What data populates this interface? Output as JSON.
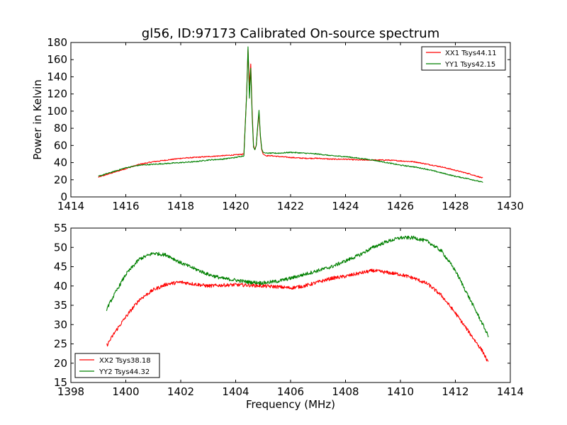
{
  "figure": {
    "title": "gl56, ID:97173 Calibrated On-source spectrum",
    "xlabel": "Frequency (MHz)"
  },
  "chart_data": [
    {
      "type": "line",
      "ylabel": "Power in Kelvin",
      "xlabel": "",
      "xlim": [
        1414,
        1430
      ],
      "ylim": [
        0,
        180
      ],
      "xticks": [
        1414,
        1416,
        1418,
        1420,
        1422,
        1424,
        1426,
        1428,
        1430
      ],
      "yticks": [
        0,
        20,
        40,
        60,
        80,
        100,
        120,
        140,
        160,
        180
      ],
      "grid": false,
      "legend_position": "top-right",
      "series": [
        {
          "name": "XX1 Tsys44.11",
          "color": "#ff0000",
          "x": [
            1415.0,
            1415.5,
            1416.0,
            1416.5,
            1417.0,
            1417.5,
            1418.0,
            1418.5,
            1419.0,
            1419.5,
            1420.0,
            1420.3,
            1420.4,
            1420.45,
            1420.5,
            1420.55,
            1420.6,
            1420.65,
            1420.7,
            1420.75,
            1420.8,
            1420.85,
            1420.9,
            1420.95,
            1421.0,
            1421.1,
            1421.3,
            1421.6,
            1422.0,
            1422.5,
            1423.0,
            1423.5,
            1424.0,
            1424.5,
            1425.0,
            1425.5,
            1426.0,
            1426.5,
            1427.0,
            1427.5,
            1428.0,
            1428.5,
            1429.0
          ],
          "y": [
            23,
            28,
            33,
            38,
            41,
            43,
            45,
            46,
            47,
            48,
            49,
            50,
            120,
            172,
            130,
            155,
            100,
            60,
            55,
            60,
            80,
            98,
            70,
            55,
            50,
            48,
            48,
            47,
            46,
            45,
            45,
            44,
            44,
            43,
            43,
            43,
            42,
            41,
            38,
            35,
            31,
            27,
            22
          ]
        },
        {
          "name": "YY1 Tsys42.15",
          "color": "#008000",
          "x": [
            1415.0,
            1415.5,
            1416.0,
            1416.5,
            1417.0,
            1417.5,
            1418.0,
            1418.5,
            1419.0,
            1419.5,
            1420.0,
            1420.3,
            1420.4,
            1420.45,
            1420.5,
            1420.55,
            1420.6,
            1420.65,
            1420.7,
            1420.75,
            1420.8,
            1420.85,
            1420.9,
            1420.95,
            1421.0,
            1421.1,
            1421.3,
            1421.6,
            1422.0,
            1422.5,
            1423.0,
            1423.5,
            1424.0,
            1424.5,
            1425.0,
            1425.5,
            1426.0,
            1426.5,
            1427.0,
            1427.5,
            1428.0,
            1428.5,
            1429.0
          ],
          "y": [
            24,
            29,
            34,
            37,
            38,
            39,
            40,
            41,
            43,
            44,
            46,
            48,
            120,
            175,
            115,
            150,
            95,
            58,
            55,
            60,
            82,
            101,
            72,
            56,
            52,
            51,
            51,
            51,
            52,
            51,
            50,
            48,
            47,
            45,
            43,
            40,
            37,
            35,
            32,
            28,
            24,
            21,
            17
          ]
        }
      ]
    },
    {
      "type": "line",
      "ylabel": "",
      "xlabel": "Frequency (MHz)",
      "xlim": [
        1398,
        1414
      ],
      "ylim": [
        15,
        55
      ],
      "xticks": [
        1398,
        1400,
        1402,
        1404,
        1406,
        1408,
        1410,
        1412,
        1414
      ],
      "yticks": [
        15,
        20,
        25,
        30,
        35,
        40,
        45,
        50,
        55
      ],
      "grid": false,
      "legend_position": "bottom-left",
      "series": [
        {
          "name": "XX2 Tsys38.18",
          "color": "#ff0000",
          "x": [
            1399.3,
            1399.6,
            1400.0,
            1400.5,
            1401.0,
            1401.5,
            1402.0,
            1402.5,
            1403.0,
            1403.5,
            1404.0,
            1404.5,
            1405.0,
            1405.5,
            1406.0,
            1406.5,
            1407.0,
            1407.5,
            1408.0,
            1408.5,
            1409.0,
            1409.5,
            1410.0,
            1410.5,
            1411.0,
            1411.5,
            1412.0,
            1412.5,
            1413.0,
            1413.2
          ],
          "y": [
            24.5,
            28,
            32,
            36.5,
            39,
            40.5,
            41,
            40.5,
            40,
            40.2,
            40.3,
            40.2,
            40,
            39.8,
            39.5,
            40,
            41,
            42,
            42.5,
            43.3,
            44,
            43.5,
            43,
            42,
            40.5,
            37.5,
            33,
            28,
            23,
            20
          ]
        },
        {
          "name": "YY2 Tsys44.32",
          "color": "#008000",
          "x": [
            1399.3,
            1399.6,
            1400.0,
            1400.5,
            1401.0,
            1401.5,
            1402.0,
            1402.5,
            1403.0,
            1403.5,
            1404.0,
            1404.5,
            1405.0,
            1405.5,
            1406.0,
            1406.5,
            1407.0,
            1407.5,
            1408.0,
            1408.5,
            1409.0,
            1409.5,
            1410.0,
            1410.5,
            1411.0,
            1411.5,
            1412.0,
            1412.5,
            1413.0,
            1413.2
          ],
          "y": [
            34,
            38,
            43,
            47,
            48.5,
            48,
            46,
            44.5,
            43,
            42,
            41.5,
            41,
            40.8,
            41.2,
            42,
            43,
            44,
            45,
            46.5,
            48,
            50,
            51.5,
            52.5,
            52.5,
            51.5,
            49,
            44,
            37,
            30,
            27
          ]
        }
      ]
    }
  ]
}
